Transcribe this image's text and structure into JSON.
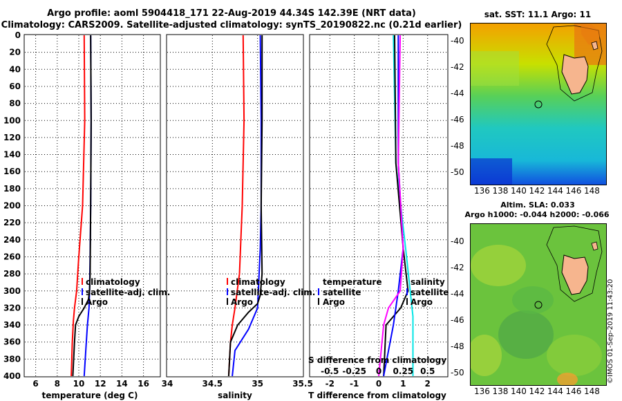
{
  "header": {
    "line1": "Argo profile: aoml 5904418_171 22-Aug-2019 44.34S 142.39E (NRT data)",
    "line2": "Climatology: CARS2009. Satellite-adjusted climatology: synTS_20190822.nc (0.21d earlier)"
  },
  "maps": {
    "sst_title": "sat. SST: 11.1 Argo: 11",
    "sla_title1": "Altim. SLA: 0.033",
    "sla_title2": "Argo h1000: -0.044 h2000: -0.066",
    "lat_ticks": [
      "-40",
      "-42",
      "-44",
      "-46",
      "-48",
      "-50"
    ],
    "lon_ticks": [
      "136",
      "138",
      "140",
      "142",
      "144",
      "146",
      "148"
    ],
    "credit": "©IMOS 01-Sep-2019 11:43:20"
  },
  "colors": {
    "climatology": "#ff0000",
    "satellite": "#0000ff",
    "argo": "#000000",
    "tdiff": "#00e5e5",
    "sdiff": "#ff00ff"
  },
  "chart_data": [
    {
      "type": "line",
      "xlabel": "temperature (deg C)",
      "ylabel": "",
      "xlim": [
        5,
        17.5
      ],
      "ylim": [
        400,
        0
      ],
      "xticks": [
        "6",
        "8",
        "10",
        "12",
        "14",
        "16"
      ],
      "yticks": [
        "0",
        "20",
        "40",
        "60",
        "80",
        "100",
        "120",
        "140",
        "160",
        "180",
        "200",
        "220",
        "240",
        "260",
        "280",
        "300",
        "320",
        "340",
        "360",
        "380",
        "400"
      ],
      "legend": [
        "climatology",
        "satellite-adj. clim.",
        "Argo"
      ],
      "series": [
        {
          "name": "climatology",
          "depth": [
            0,
            100,
            200,
            260,
            300,
            320,
            335,
            360,
            400
          ],
          "values": [
            10.5,
            10.55,
            10.35,
            10.0,
            9.8,
            9.6,
            9.5,
            9.4,
            9.3
          ]
        },
        {
          "name": "satellite-adj. clim.",
          "depth": [
            0,
            100,
            200,
            260,
            300,
            320,
            340,
            360,
            400
          ],
          "values": [
            11.1,
            11.15,
            11.1,
            11.05,
            11.0,
            10.95,
            10.8,
            10.7,
            10.5
          ]
        },
        {
          "name": "Argo",
          "depth": [
            0,
            100,
            200,
            280,
            300,
            310,
            320,
            330,
            340,
            360,
            400
          ],
          "values": [
            11.1,
            11.15,
            11.1,
            11.05,
            11.0,
            10.9,
            10.5,
            10.0,
            9.7,
            9.6,
            9.45
          ]
        }
      ]
    },
    {
      "type": "line",
      "xlabel": "salinity",
      "xlim": [
        34,
        35.5
      ],
      "ylim": [
        400,
        0
      ],
      "xticks": [
        "34",
        "34.5",
        "35",
        "35.5"
      ],
      "legend": [
        "climatology",
        "satellite-adj. clim.",
        "Argo"
      ],
      "series": [
        {
          "name": "climatology",
          "depth": [
            0,
            100,
            200,
            280,
            320,
            340,
            360,
            400
          ],
          "values": [
            34.84,
            34.85,
            34.83,
            34.8,
            34.75,
            34.72,
            34.7,
            34.68
          ]
        },
        {
          "name": "satellite-adj. clim.",
          "depth": [
            0,
            100,
            200,
            250,
            320,
            345,
            370,
            400
          ],
          "values": [
            35.03,
            35.04,
            35.04,
            35.03,
            35.0,
            34.9,
            34.75,
            34.72
          ]
        },
        {
          "name": "Argo",
          "depth": [
            0,
            100,
            200,
            280,
            305,
            315,
            325,
            340,
            360,
            400
          ],
          "values": [
            35.05,
            35.05,
            35.04,
            35.05,
            35.03,
            35.0,
            34.9,
            34.78,
            34.7,
            34.68
          ]
        }
      ]
    },
    {
      "type": "line",
      "xlabel": "T difference from climatology",
      "x2label": "S difference from climatology",
      "xlim": [
        -2.8,
        2.8
      ],
      "x2lim": [
        -0.7,
        0.7
      ],
      "ylim": [
        400,
        0
      ],
      "xticks": [
        "-2",
        "-1",
        "0",
        "1",
        "2"
      ],
      "x2ticks": [
        "-0.5",
        "-0.25",
        "0",
        "0.25",
        "0.5"
      ],
      "legend_left": [
        "temperature",
        "satellite",
        "Argo"
      ],
      "legend_right": [
        "salinity",
        "satellite",
        "Argo"
      ],
      "series": [
        {
          "name": "T satellite",
          "depth": [
            0,
            150,
            250,
            330,
            400
          ],
          "values": [
            0.6,
            0.7,
            1.1,
            1.4,
            1.4
          ]
        },
        {
          "name": "T Argo",
          "depth": [
            0,
            150,
            250,
            300,
            320,
            340,
            400
          ],
          "values": [
            0.65,
            0.7,
            1.0,
            1.2,
            0.9,
            0.3,
            0.2
          ]
        },
        {
          "name": "S satellite",
          "depth": [
            0,
            150,
            250,
            300,
            340,
            400
          ],
          "values": [
            0.2,
            0.2,
            0.25,
            0.2,
            0.15,
            0.05
          ]
        },
        {
          "name": "S Argo",
          "depth": [
            0,
            150,
            250,
            300,
            320,
            340,
            400
          ],
          "values": [
            0.22,
            0.2,
            0.25,
            0.22,
            0.1,
            0.05,
            0.0
          ]
        }
      ]
    }
  ]
}
